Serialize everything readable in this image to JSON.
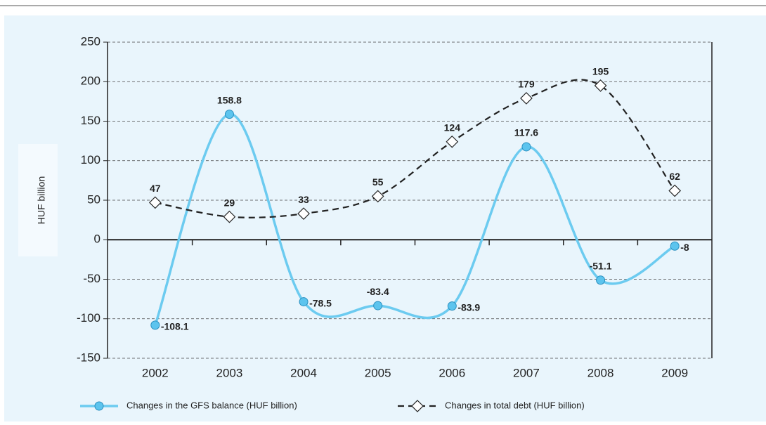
{
  "chart_data": {
    "type": "line",
    "y_label": "HUF billion",
    "categories": [
      "2002",
      "2003",
      "2004",
      "2005",
      "2006",
      "2007",
      "2008",
      "2009"
    ],
    "series": [
      {
        "name": "Changes in the GFS balance (HUF billion)",
        "color": "#6ccbf0",
        "values": [
          -108.1,
          158.8,
          -78.5,
          -83.4,
          -83.9,
          117.6,
          -51.1,
          -8
        ]
      },
      {
        "name": "Changes in total debt (HUF billion)",
        "color": "#222222",
        "values": [
          47,
          29,
          33,
          55,
          124,
          179,
          195,
          62
        ]
      }
    ],
    "ylim": [
      -150,
      250
    ],
    "yticks": [
      -150,
      -100,
      -50,
      0,
      50,
      100,
      150,
      200,
      250
    ],
    "grid": true
  }
}
